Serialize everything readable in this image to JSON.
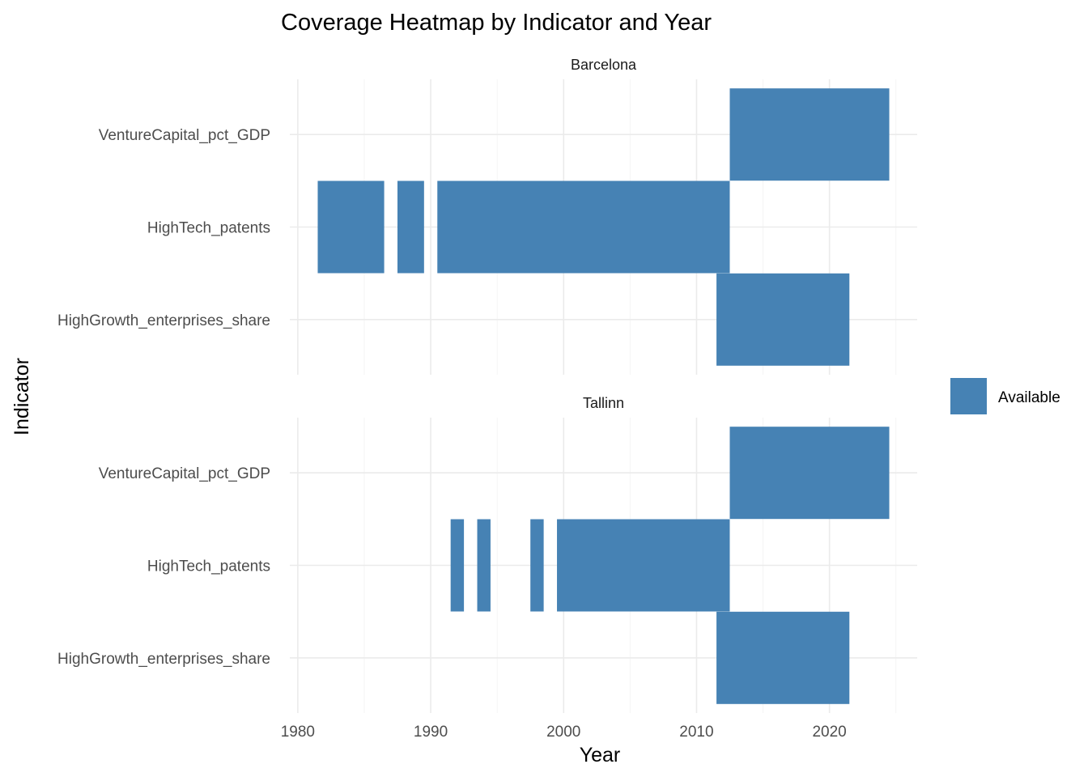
{
  "chart_data": {
    "type": "heatmap",
    "title": "Coverage Heatmap by Indicator and Year",
    "xlabel": "Year",
    "ylabel": "Indicator",
    "xlim": [
      1979.4,
      2026.6
    ],
    "x_ticks": [
      1980,
      1990,
      2000,
      2010,
      2020
    ],
    "indicators": [
      "HighGrowth_enterprises_share",
      "HighTech_patents",
      "VentureCapital_pct_GDP"
    ],
    "fill_color": "#4682B4",
    "grid": true,
    "legend": {
      "position": "right",
      "entries": [
        {
          "label": "Available",
          "color": "#4682B4"
        }
      ]
    },
    "facets": [
      {
        "name": "Barcelona",
        "rows": [
          {
            "indicator": "VentureCapital_pct_GDP",
            "years_available": [
              [
                2013,
                2024
              ]
            ]
          },
          {
            "indicator": "HighTech_patents",
            "years_available": [
              [
                1982,
                1986
              ],
              [
                1988,
                1989
              ],
              [
                1991,
                2012
              ]
            ]
          },
          {
            "indicator": "HighGrowth_enterprises_share",
            "years_available": [
              [
                2012,
                2021
              ]
            ]
          }
        ]
      },
      {
        "name": "Tallinn",
        "rows": [
          {
            "indicator": "VentureCapital_pct_GDP",
            "years_available": [
              [
                2013,
                2024
              ]
            ]
          },
          {
            "indicator": "HighTech_patents",
            "years_available": [
              [
                1992,
                1992
              ],
              [
                1994,
                1994
              ],
              [
                1998,
                1998
              ],
              [
                2000,
                2012
              ]
            ]
          },
          {
            "indicator": "HighGrowth_enterprises_share",
            "years_available": [
              [
                2012,
                2021
              ]
            ]
          }
        ]
      }
    ]
  }
}
